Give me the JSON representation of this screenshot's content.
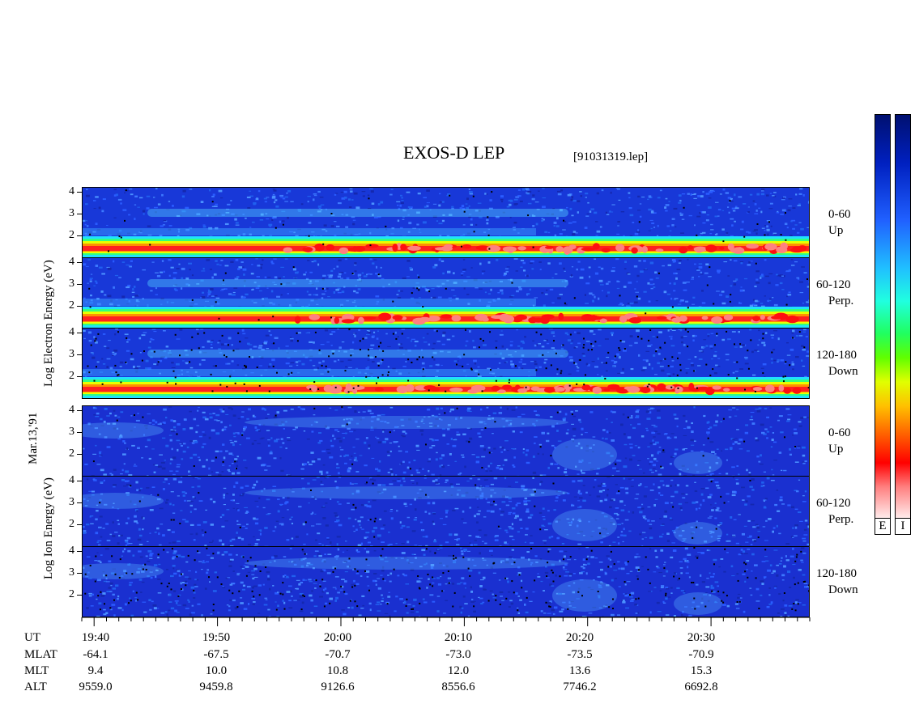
{
  "title": "EXOS-D LEP",
  "filename": "[91031319.lep]",
  "electron_ylabel": "Log   Electron   Energy  (eV)",
  "ion_ylabel": "Log   Ion   Energy  (eV)",
  "date_label": "Mar.13,'91",
  "colorbar": {
    "electron_label": "E",
    "ion_label": "I"
  },
  "axis_rows": {
    "labels": [
      "UT",
      "MLAT",
      "MLT",
      "ALT"
    ],
    "UT": [
      "19:40",
      "19:50",
      "20:00",
      "20:10",
      "20:20",
      "20:30"
    ],
    "MLAT": [
      "-64.1",
      "-67.5",
      "-70.7",
      "-73.0",
      "-73.5",
      "-70.9"
    ],
    "MLT": [
      "9.4",
      "10.0",
      "10.8",
      "12.0",
      "13.6",
      "15.3"
    ],
    "ALT": [
      "9559.0",
      "9459.8",
      "9126.6",
      "8556.6",
      "7746.2",
      "6692.8"
    ]
  },
  "chart_data": {
    "type": "heatmap",
    "title": "EXOS-D LEP",
    "x_axis": "UT",
    "x_range": [
      "19:39",
      "20:38"
    ],
    "y_scale": "log",
    "y_range": [
      1,
      4
    ],
    "y_ticks": [
      "4",
      "3",
      "2"
    ],
    "panels": [
      {
        "species": "Electron",
        "pitch_angle": "0-60",
        "direction": "Up"
      },
      {
        "species": "Electron",
        "pitch_angle": "60-120",
        "direction": "Perp."
      },
      {
        "species": "Electron",
        "pitch_angle": "120-180",
        "direction": "Down"
      },
      {
        "species": "Ion",
        "pitch_angle": "0-60",
        "direction": "Up"
      },
      {
        "species": "Ion",
        "pitch_angle": "60-120",
        "direction": "Perp."
      },
      {
        "species": "Ion",
        "pitch_angle": "120-180",
        "direction": "Down"
      }
    ],
    "colormap": [
      "#001070",
      "#2060ff",
      "#20ffe0",
      "#20ff60",
      "#e0ff00",
      "#ff6000",
      "#ff0000",
      "#fff0f0"
    ]
  }
}
